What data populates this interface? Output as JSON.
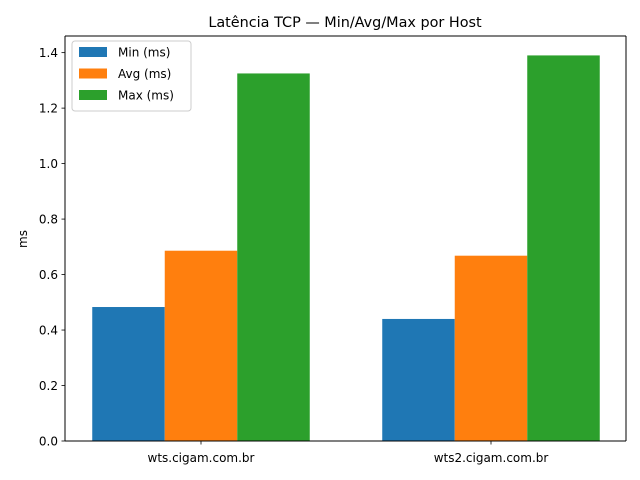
{
  "chart_data": {
    "type": "bar",
    "title": "Latência TCP — Min/Avg/Max por Host",
    "xlabel": "",
    "ylabel": "ms",
    "categories": [
      "wts.cigam.com.br",
      "wts2.cigam.com.br"
    ],
    "series": [
      {
        "name": "Min (ms)",
        "color": "#1f77b4",
        "values": [
          0.483,
          0.44
        ]
      },
      {
        "name": "Avg (ms)",
        "color": "#ff7f0e",
        "values": [
          0.686,
          0.668
        ]
      },
      {
        "name": "Max (ms)",
        "color": "#2ca02c",
        "values": [
          1.325,
          1.39
        ]
      }
    ],
    "ylim": [
      0,
      1.46
    ],
    "yticks": [
      "0.0",
      "0.2",
      "0.4",
      "0.6",
      "0.8",
      "1.0",
      "1.2",
      "1.4"
    ],
    "grid": false,
    "legend_position": "upper-left"
  }
}
